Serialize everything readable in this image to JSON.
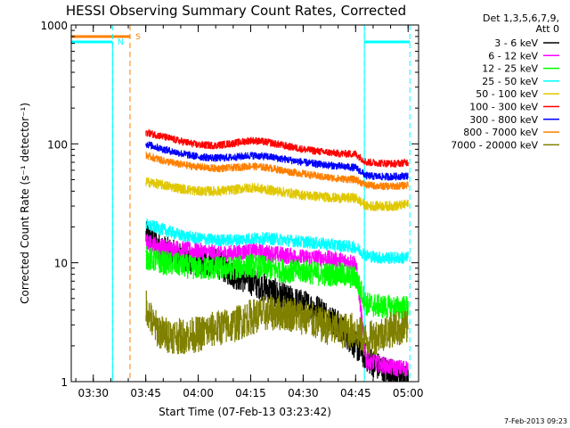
{
  "chart_data": {
    "type": "line",
    "title": "HESSI Observing Summary Count Rates, Corrected",
    "xlabel": "Start Time (07-Feb-13 03:23:42)",
    "ylabel": "Corrected Count Rate (s⁻¹ detector⁻¹)",
    "yscale": "log",
    "ylim": [
      1,
      1000
    ],
    "yticks": [
      1,
      10,
      100,
      1000
    ],
    "ytick_labels": [
      "1",
      "10",
      "100",
      "1000"
    ],
    "xlim": [
      "03:23:42",
      "05:03:00"
    ],
    "xticks": [
      "03:30",
      "03:45",
      "04:00",
      "04:15",
      "04:30",
      "04:45",
      "05:00"
    ],
    "legend": {
      "placement": "right",
      "header": [
        "Det 1,3,5,6,7,9,",
        "Att 0"
      ],
      "entries": [
        {
          "label": "3 - 6 keV",
          "color": "#000000"
        },
        {
          "label": "6 - 12 keV",
          "color": "#ff00ff"
        },
        {
          "label": "12 - 25 keV",
          "color": "#00ff00"
        },
        {
          "label": "25 - 50 keV",
          "color": "#00ffff"
        },
        {
          "label": "50 - 100 keV",
          "color": "#e0c800"
        },
        {
          "label": "100 - 300 keV",
          "color": "#ff0000"
        },
        {
          "label": "300 - 800 keV",
          "color": "#0000ff"
        },
        {
          "label": "800 - 7000 keV",
          "color": "#ff8000"
        },
        {
          "label": "7000 - 20000 keV",
          "color": "#808000"
        }
      ]
    },
    "series": [
      {
        "name": "3 - 6 keV",
        "color": "#000000",
        "noise": 0.12,
        "points": [
          [
            "03:45",
            17
          ],
          [
            "03:50",
            13
          ],
          [
            "03:55",
            11
          ],
          [
            "04:00",
            10
          ],
          [
            "04:05",
            10
          ],
          [
            "04:10",
            8
          ],
          [
            "04:15",
            7
          ],
          [
            "04:20",
            6
          ],
          [
            "04:25",
            5
          ],
          [
            "04:30",
            4.5
          ],
          [
            "04:35",
            4
          ],
          [
            "04:40",
            3
          ],
          [
            "04:45",
            2
          ],
          [
            "04:49",
            1.5
          ],
          [
            "04:52",
            1.3
          ],
          [
            "04:55",
            1.2
          ],
          [
            "04:58",
            1.1
          ],
          [
            "05:00",
            1.0
          ]
        ]
      },
      {
        "name": "6 - 12 keV",
        "color": "#ff00ff",
        "noise": 0.07,
        "points": [
          [
            "03:45",
            15
          ],
          [
            "03:50",
            13.5
          ],
          [
            "03:55",
            13
          ],
          [
            "04:00",
            12.5
          ],
          [
            "04:05",
            12
          ],
          [
            "04:10",
            12
          ],
          [
            "04:15",
            12.5
          ],
          [
            "04:20",
            12
          ],
          [
            "04:25",
            11.5
          ],
          [
            "04:30",
            11
          ],
          [
            "04:35",
            11
          ],
          [
            "04:40",
            10.5
          ],
          [
            "04:45",
            10
          ],
          [
            "04:48",
            1.5
          ],
          [
            "04:52",
            1.4
          ],
          [
            "04:56",
            1.3
          ],
          [
            "05:00",
            1.3
          ]
        ]
      },
      {
        "name": "12 - 25 keV",
        "color": "#00ff00",
        "noise": 0.1,
        "points": [
          [
            "03:45",
            11
          ],
          [
            "03:50",
            10
          ],
          [
            "03:55",
            9.5
          ],
          [
            "04:00",
            9
          ],
          [
            "04:05",
            9
          ],
          [
            "04:10",
            9
          ],
          [
            "04:15",
            9.5
          ],
          [
            "04:20",
            9
          ],
          [
            "04:25",
            8.5
          ],
          [
            "04:30",
            8.5
          ],
          [
            "04:35",
            8
          ],
          [
            "04:40",
            8
          ],
          [
            "04:45",
            7.5
          ],
          [
            "04:48",
            4.5
          ],
          [
            "04:52",
            4.3
          ],
          [
            "04:56",
            4.2
          ],
          [
            "05:00",
            4.2
          ]
        ]
      },
      {
        "name": "25 - 50 keV",
        "color": "#00ffff",
        "noise": 0.05,
        "points": [
          [
            "03:45",
            21
          ],
          [
            "03:50",
            19
          ],
          [
            "03:55",
            17
          ],
          [
            "04:00",
            16
          ],
          [
            "04:05",
            15.5
          ],
          [
            "04:10",
            15.5
          ],
          [
            "04:15",
            16
          ],
          [
            "04:20",
            16
          ],
          [
            "04:25",
            15.5
          ],
          [
            "04:30",
            15
          ],
          [
            "04:35",
            14.5
          ],
          [
            "04:40",
            14
          ],
          [
            "04:45",
            13.5
          ],
          [
            "04:48",
            11.5
          ],
          [
            "04:52",
            11
          ],
          [
            "04:56",
            11
          ],
          [
            "05:00",
            11
          ]
        ]
      },
      {
        "name": "50 - 100 keV",
        "color": "#e0c800",
        "noise": 0.04,
        "points": [
          [
            "03:45",
            48
          ],
          [
            "03:50",
            45
          ],
          [
            "03:55",
            42
          ],
          [
            "04:00",
            40
          ],
          [
            "04:05",
            40
          ],
          [
            "04:10",
            41
          ],
          [
            "04:15",
            43
          ],
          [
            "04:20",
            41
          ],
          [
            "04:25",
            39
          ],
          [
            "04:30",
            37
          ],
          [
            "04:35",
            36
          ],
          [
            "04:40",
            35
          ],
          [
            "04:45",
            35
          ],
          [
            "04:48",
            30
          ],
          [
            "04:52",
            30
          ],
          [
            "04:56",
            30
          ],
          [
            "05:00",
            31
          ]
        ]
      },
      {
        "name": "100 - 300 keV",
        "color": "#ff0000",
        "noise": 0.03,
        "points": [
          [
            "03:45",
            125
          ],
          [
            "03:50",
            115
          ],
          [
            "03:55",
            105
          ],
          [
            "04:00",
            98
          ],
          [
            "04:05",
            97
          ],
          [
            "04:10",
            101
          ],
          [
            "04:15",
            107
          ],
          [
            "04:20",
            103
          ],
          [
            "04:25",
            96
          ],
          [
            "04:30",
            90
          ],
          [
            "04:35",
            86
          ],
          [
            "04:40",
            83
          ],
          [
            "04:45",
            82
          ],
          [
            "04:48",
            70
          ],
          [
            "04:52",
            69
          ],
          [
            "04:56",
            68
          ],
          [
            "05:00",
            70
          ]
        ]
      },
      {
        "name": "300 - 800 keV",
        "color": "#0000ff",
        "noise": 0.03,
        "points": [
          [
            "03:45",
            100
          ],
          [
            "03:50",
            90
          ],
          [
            "03:55",
            83
          ],
          [
            "04:00",
            78
          ],
          [
            "04:05",
            76
          ],
          [
            "04:10",
            77
          ],
          [
            "04:15",
            80
          ],
          [
            "04:20",
            78
          ],
          [
            "04:25",
            74
          ],
          [
            "04:30",
            70
          ],
          [
            "04:35",
            67
          ],
          [
            "04:40",
            65
          ],
          [
            "04:45",
            63
          ],
          [
            "04:48",
            54
          ],
          [
            "04:52",
            53
          ],
          [
            "04:56",
            53
          ],
          [
            "05:00",
            54
          ]
        ]
      },
      {
        "name": "800 - 7000 keV",
        "color": "#ff8000",
        "noise": 0.03,
        "points": [
          [
            "03:45",
            80
          ],
          [
            "03:50",
            72
          ],
          [
            "03:55",
            67
          ],
          [
            "04:00",
            64
          ],
          [
            "04:05",
            62
          ],
          [
            "04:10",
            63
          ],
          [
            "04:15",
            65
          ],
          [
            "04:20",
            63
          ],
          [
            "04:25",
            59
          ],
          [
            "04:30",
            56
          ],
          [
            "04:35",
            53
          ],
          [
            "04:40",
            51
          ],
          [
            "04:45",
            50
          ],
          [
            "04:48",
            45
          ],
          [
            "04:52",
            44
          ],
          [
            "04:56",
            44
          ],
          [
            "05:00",
            45
          ]
        ]
      },
      {
        "name": "7000 - 20000 keV",
        "color": "#808000",
        "noise": 0.15,
        "points": [
          [
            "03:45",
            4.5
          ],
          [
            "03:47",
            3.0
          ],
          [
            "03:50",
            2.5
          ],
          [
            "03:55",
            2.4
          ],
          [
            "04:00",
            2.5
          ],
          [
            "04:05",
            2.8
          ],
          [
            "04:10",
            3.0
          ],
          [
            "04:15",
            3.5
          ],
          [
            "04:20",
            3.8
          ],
          [
            "04:25",
            3.8
          ],
          [
            "04:30",
            3.5
          ],
          [
            "04:35",
            3.0
          ],
          [
            "04:40",
            2.7
          ],
          [
            "04:45",
            2.7
          ],
          [
            "04:48",
            2.2
          ],
          [
            "04:52",
            2.5
          ],
          [
            "04:56",
            2.8
          ],
          [
            "05:00",
            2.8
          ]
        ]
      }
    ],
    "annotations": {
      "night_label": "N",
      "saa_label": "S",
      "night_color": "#00ffff",
      "saa_color": "#ff8000",
      "night_intervals": [
        [
          "03:23:42",
          "03:35:30"
        ],
        [
          "04:47:30",
          "05:00:30"
        ]
      ],
      "saa_intervals": [
        [
          "03:23:42",
          "03:40:30"
        ]
      ],
      "dashed_lines": [
        {
          "time": "03:35:30",
          "color": "#00ffff"
        },
        {
          "time": "03:40:30",
          "color": "#ff8000"
        },
        {
          "time": "04:47:30",
          "color": "#00ffff"
        },
        {
          "time": "05:00:30",
          "color": "#00ffff"
        }
      ]
    }
  },
  "footer": {
    "date": "7-Feb-2013 09:23"
  }
}
